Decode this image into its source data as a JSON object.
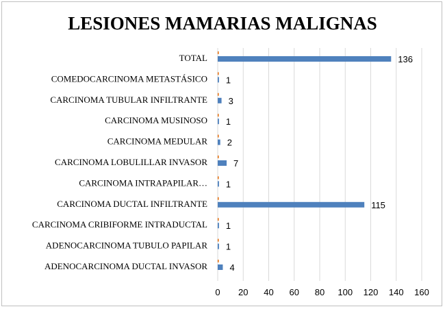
{
  "chart_data": {
    "type": "bar",
    "orientation": "horizontal",
    "title": "LESIONES MAMARIAS MALIGNAS",
    "categories": [
      "TOTAL",
      "COMEDOCARCINOMA METASTÁSICO",
      "CARCINOMA TUBULAR INFILTRANTE",
      "CARCINOMA MUSINOSO",
      "CARCINOMA MEDULAR",
      "CARCINOMA LOBULILLAR INVASOR",
      "CARCINOMA INTRAPAPILAR…",
      "CARCINOMA DUCTAL INFILTRANTE",
      "CARCINOMA CRIBIFORME INTRADUCTAL",
      "ADENOCARCINOMA TUBULO PAPILAR",
      "ADENOCARCINOMA DUCTAL INVASOR"
    ],
    "series": [
      {
        "color": "#4f81bd",
        "values": [
          136,
          1,
          3,
          1,
          2,
          7,
          1,
          115,
          1,
          1,
          4
        ],
        "data_labels": [
          "136",
          "1",
          "3",
          "1",
          "2",
          "7",
          "1",
          "115",
          "1",
          "1",
          "4"
        ]
      },
      {
        "color": "#e46c0a",
        "values": [
          0,
          0,
          0,
          0,
          0,
          0,
          0,
          0,
          0,
          0,
          0
        ]
      }
    ],
    "xlim": [
      0,
      160
    ],
    "xticks": [
      "0",
      "20",
      "40",
      "60",
      "80",
      "100",
      "120",
      "140",
      "160"
    ],
    "grid": "vertical",
    "legend": "none"
  }
}
